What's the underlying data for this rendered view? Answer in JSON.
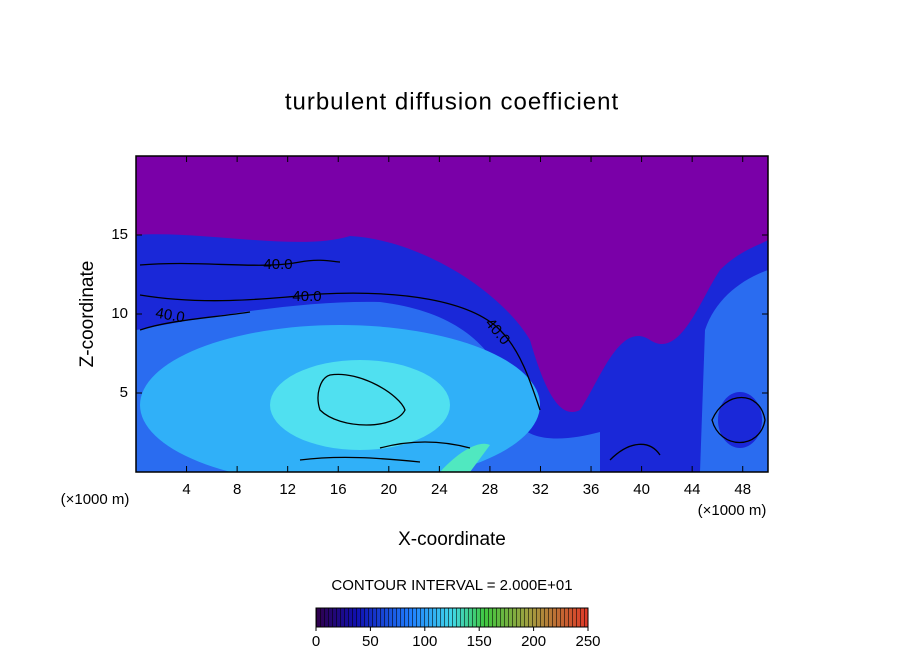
{
  "chart_data": {
    "type": "contour",
    "title": "turbulent diffusion coefficient",
    "xlabel": "X-coordinate",
    "ylabel": "Z-coordinate",
    "x_unit_label": "(×1000 m)",
    "y_unit_label": "(×1000 m)",
    "xlim": [
      0,
      50
    ],
    "ylim": [
      0,
      20
    ],
    "xticks": [
      4,
      8,
      12,
      16,
      20,
      24,
      28,
      32,
      36,
      40,
      44,
      48
    ],
    "yticks": [
      5,
      10,
      15
    ],
    "contour_labels": [
      "40.0",
      "40.0",
      "40.0",
      "40.0"
    ],
    "contour_interval_label": "CONTOUR INTERVAL = 2.000E+01",
    "colorbar": {
      "lim": [
        0,
        250
      ],
      "ticks": [
        0,
        50,
        100,
        150,
        200,
        250
      ]
    }
  }
}
